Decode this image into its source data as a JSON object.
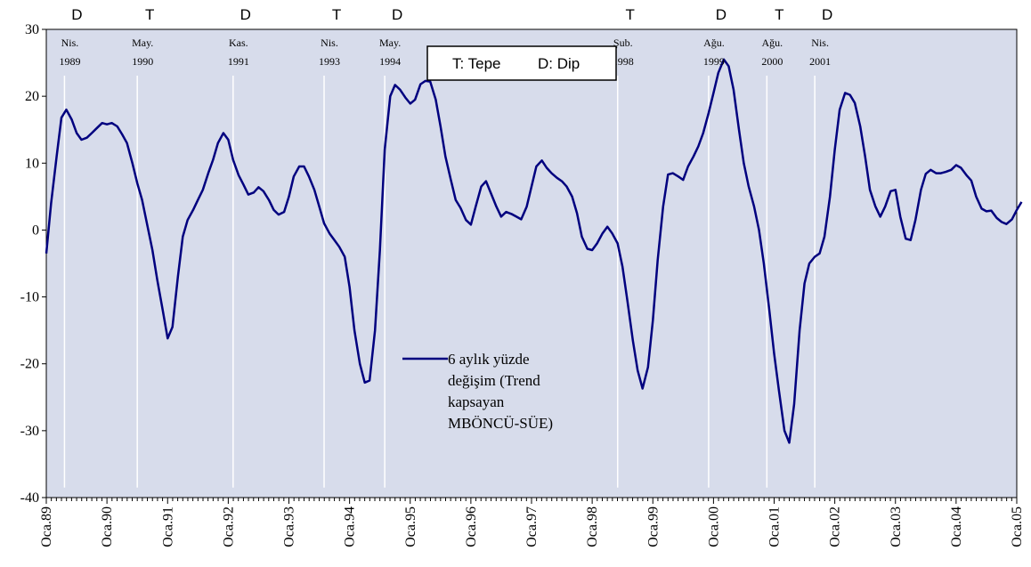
{
  "chart_data": {
    "type": "line",
    "ylim": [
      -40,
      30
    ],
    "yticks": [
      30,
      20,
      10,
      0,
      -10,
      -20,
      -30,
      -40
    ],
    "x_tick_labels": [
      "Oca.89",
      "Oca.90",
      "Oca.91",
      "Oca.92",
      "Oca.93",
      "Oca.94",
      "Oca.95",
      "Oca.96",
      "Oca.97",
      "Oca.98",
      "Oca.99",
      "Oca.00",
      "Oca.01",
      "Oca.02",
      "Oca.03",
      "Oca.04",
      "Oca.05"
    ],
    "xlim": [
      1989.0,
      2005.0
    ],
    "grid": false,
    "plot_background": "#d7dceb",
    "line_color": "#00007f",
    "marker_line_color": "#ffffff",
    "series": [
      {
        "name": "6 aylık yüzde değişim (Trend kapsayan MBÖNCÜ-SÜE)",
        "points": [
          [
            1989.0,
            -3.5
          ],
          [
            1989.08,
            4
          ],
          [
            1989.17,
            11
          ],
          [
            1989.25,
            16.8
          ],
          [
            1989.33,
            18
          ],
          [
            1989.42,
            16.5
          ],
          [
            1989.5,
            14.5
          ],
          [
            1989.58,
            13.5
          ],
          [
            1989.67,
            13.8
          ],
          [
            1989.75,
            14.5
          ],
          [
            1989.83,
            15.2
          ],
          [
            1989.92,
            16
          ],
          [
            1990.0,
            15.8
          ],
          [
            1990.08,
            16
          ],
          [
            1990.17,
            15.5
          ],
          [
            1990.25,
            14.3
          ],
          [
            1990.33,
            13
          ],
          [
            1990.42,
            10
          ],
          [
            1990.5,
            7
          ],
          [
            1990.58,
            4.5
          ],
          [
            1990.67,
            0.5
          ],
          [
            1990.75,
            -3
          ],
          [
            1990.83,
            -7.5
          ],
          [
            1990.92,
            -12
          ],
          [
            1991.0,
            -16.2
          ],
          [
            1991.08,
            -14.5
          ],
          [
            1991.17,
            -7
          ],
          [
            1991.25,
            -1
          ],
          [
            1991.33,
            1.5
          ],
          [
            1991.42,
            3
          ],
          [
            1991.5,
            4.5
          ],
          [
            1991.58,
            6
          ],
          [
            1991.67,
            8.5
          ],
          [
            1991.75,
            10.5
          ],
          [
            1991.83,
            13
          ],
          [
            1991.92,
            14.5
          ],
          [
            1992.0,
            13.5
          ],
          [
            1992.08,
            10.5
          ],
          [
            1992.17,
            8.2
          ],
          [
            1992.25,
            6.8
          ],
          [
            1992.33,
            5.3
          ],
          [
            1992.42,
            5.6
          ],
          [
            1992.5,
            6.4
          ],
          [
            1992.58,
            5.8
          ],
          [
            1992.67,
            4.5
          ],
          [
            1992.75,
            3
          ],
          [
            1992.83,
            2.3
          ],
          [
            1992.92,
            2.7
          ],
          [
            1993.0,
            5
          ],
          [
            1993.08,
            8
          ],
          [
            1993.17,
            9.5
          ],
          [
            1993.25,
            9.5
          ],
          [
            1993.33,
            8
          ],
          [
            1993.42,
            6
          ],
          [
            1993.5,
            3.5
          ],
          [
            1993.58,
            1
          ],
          [
            1993.67,
            -0.5
          ],
          [
            1993.75,
            -1.5
          ],
          [
            1993.83,
            -2.5
          ],
          [
            1993.92,
            -4
          ],
          [
            1994.0,
            -8.5
          ],
          [
            1994.08,
            -15
          ],
          [
            1994.17,
            -20
          ],
          [
            1994.25,
            -22.8
          ],
          [
            1994.33,
            -22.5
          ],
          [
            1994.42,
            -15
          ],
          [
            1994.5,
            -3
          ],
          [
            1994.58,
            12
          ],
          [
            1994.67,
            20
          ],
          [
            1994.75,
            21.7
          ],
          [
            1994.83,
            21
          ],
          [
            1994.92,
            19.8
          ],
          [
            1995.0,
            18.9
          ],
          [
            1995.08,
            19.5
          ],
          [
            1995.17,
            21.8
          ],
          [
            1995.25,
            22.3
          ],
          [
            1995.33,
            22.2
          ],
          [
            1995.42,
            19.5
          ],
          [
            1995.5,
            15.5
          ],
          [
            1995.58,
            11
          ],
          [
            1995.67,
            7.5
          ],
          [
            1995.75,
            4.5
          ],
          [
            1995.83,
            3.3
          ],
          [
            1995.92,
            1.5
          ],
          [
            1996.0,
            0.8
          ],
          [
            1996.08,
            3.5
          ],
          [
            1996.17,
            6.5
          ],
          [
            1996.25,
            7.3
          ],
          [
            1996.33,
            5.5
          ],
          [
            1996.42,
            3.5
          ],
          [
            1996.5,
            2
          ],
          [
            1996.58,
            2.7
          ],
          [
            1996.67,
            2.4
          ],
          [
            1996.75,
            2
          ],
          [
            1996.83,
            1.6
          ],
          [
            1996.92,
            3.5
          ],
          [
            1997.0,
            6.5
          ],
          [
            1997.08,
            9.5
          ],
          [
            1997.17,
            10.4
          ],
          [
            1997.25,
            9.3
          ],
          [
            1997.33,
            8.5
          ],
          [
            1997.42,
            7.8
          ],
          [
            1997.5,
            7.3
          ],
          [
            1997.58,
            6.5
          ],
          [
            1997.67,
            5
          ],
          [
            1997.75,
            2.5
          ],
          [
            1997.83,
            -1
          ],
          [
            1997.92,
            -2.8
          ],
          [
            1998.0,
            -3
          ],
          [
            1998.08,
            -2
          ],
          [
            1998.17,
            -0.5
          ],
          [
            1998.25,
            0.5
          ],
          [
            1998.33,
            -0.5
          ],
          [
            1998.42,
            -2
          ],
          [
            1998.5,
            -5.5
          ],
          [
            1998.58,
            -10.5
          ],
          [
            1998.67,
            -16.5
          ],
          [
            1998.75,
            -21
          ],
          [
            1998.83,
            -23.7
          ],
          [
            1998.92,
            -20.5
          ],
          [
            1999.0,
            -13.5
          ],
          [
            1999.08,
            -4.5
          ],
          [
            1999.17,
            3.5
          ],
          [
            1999.25,
            8.3
          ],
          [
            1999.33,
            8.5
          ],
          [
            1999.42,
            8
          ],
          [
            1999.5,
            7.5
          ],
          [
            1999.58,
            9.5
          ],
          [
            1999.67,
            11
          ],
          [
            1999.75,
            12.5
          ],
          [
            1999.83,
            14.5
          ],
          [
            1999.92,
            17.5
          ],
          [
            2000.0,
            20.5
          ],
          [
            2000.08,
            23.5
          ],
          [
            2000.17,
            25.5
          ],
          [
            2000.25,
            24.5
          ],
          [
            2000.33,
            21
          ],
          [
            2000.42,
            15
          ],
          [
            2000.5,
            10
          ],
          [
            2000.58,
            6.5
          ],
          [
            2000.67,
            3.5
          ],
          [
            2000.75,
            0
          ],
          [
            2000.83,
            -5
          ],
          [
            2000.92,
            -12
          ],
          [
            2001.0,
            -18.5
          ],
          [
            2001.08,
            -24
          ],
          [
            2001.17,
            -30
          ],
          [
            2001.25,
            -31.8
          ],
          [
            2001.33,
            -26
          ],
          [
            2001.42,
            -15
          ],
          [
            2001.5,
            -8
          ],
          [
            2001.58,
            -5
          ],
          [
            2001.67,
            -4
          ],
          [
            2001.75,
            -3.5
          ],
          [
            2001.83,
            -1
          ],
          [
            2001.92,
            5
          ],
          [
            2002.0,
            12
          ],
          [
            2002.08,
            18
          ],
          [
            2002.17,
            20.5
          ],
          [
            2002.25,
            20.2
          ],
          [
            2002.33,
            19
          ],
          [
            2002.42,
            15.5
          ],
          [
            2002.5,
            11
          ],
          [
            2002.58,
            6
          ],
          [
            2002.67,
            3.5
          ],
          [
            2002.75,
            2
          ],
          [
            2002.83,
            3.5
          ],
          [
            2002.92,
            5.8
          ],
          [
            2003.0,
            6
          ],
          [
            2003.08,
            2
          ],
          [
            2003.17,
            -1.3
          ],
          [
            2003.25,
            -1.5
          ],
          [
            2003.33,
            1.5
          ],
          [
            2003.42,
            6
          ],
          [
            2003.5,
            8.4
          ],
          [
            2003.58,
            9
          ],
          [
            2003.67,
            8.5
          ],
          [
            2003.75,
            8.5
          ],
          [
            2003.83,
            8.7
          ],
          [
            2003.92,
            9
          ],
          [
            2004.0,
            9.7
          ],
          [
            2004.08,
            9.3
          ],
          [
            2004.17,
            8.2
          ],
          [
            2004.25,
            7.4
          ],
          [
            2004.33,
            5
          ],
          [
            2004.42,
            3.2
          ],
          [
            2004.5,
            2.8
          ],
          [
            2004.58,
            2.9
          ],
          [
            2004.67,
            1.8
          ],
          [
            2004.75,
            1.2
          ],
          [
            2004.83,
            0.9
          ],
          [
            2004.92,
            1.6
          ],
          [
            2005.0,
            3
          ],
          [
            2005.08,
            4.2
          ]
        ]
      }
    ],
    "turning_points": [
      {
        "type": "D",
        "month": "Nis.",
        "year": "1989",
        "x": 1989.3
      },
      {
        "type": "T",
        "month": "May.",
        "year": "1990",
        "x": 1990.5
      },
      {
        "type": "D",
        "month": "Kas.",
        "year": "1991",
        "x": 1992.08
      },
      {
        "type": "T",
        "month": "Nis.",
        "year": "1993",
        "x": 1993.58
      },
      {
        "type": "D",
        "month": "May.",
        "year": "1994",
        "x": 1994.58
      },
      {
        "type": "T",
        "month": "Şub.",
        "year": "1998",
        "x": 1998.42
      },
      {
        "type": "D",
        "month": "Ağu.",
        "year": "1999",
        "x": 1999.92
      },
      {
        "type": "T",
        "month": "Ağu.",
        "year": "2000",
        "x": 2000.88
      },
      {
        "type": "D",
        "month": "Nis.",
        "year": "2001",
        "x": 2001.67
      }
    ],
    "legend_box": {
      "tepe": "T: Tepe",
      "dip": "D: Dip"
    },
    "legend": {
      "lines": [
        "6 aylık yüzde",
        "değişim (Trend",
        "kapsayan",
        "MBÖNCÜ-SÜE)"
      ]
    }
  }
}
